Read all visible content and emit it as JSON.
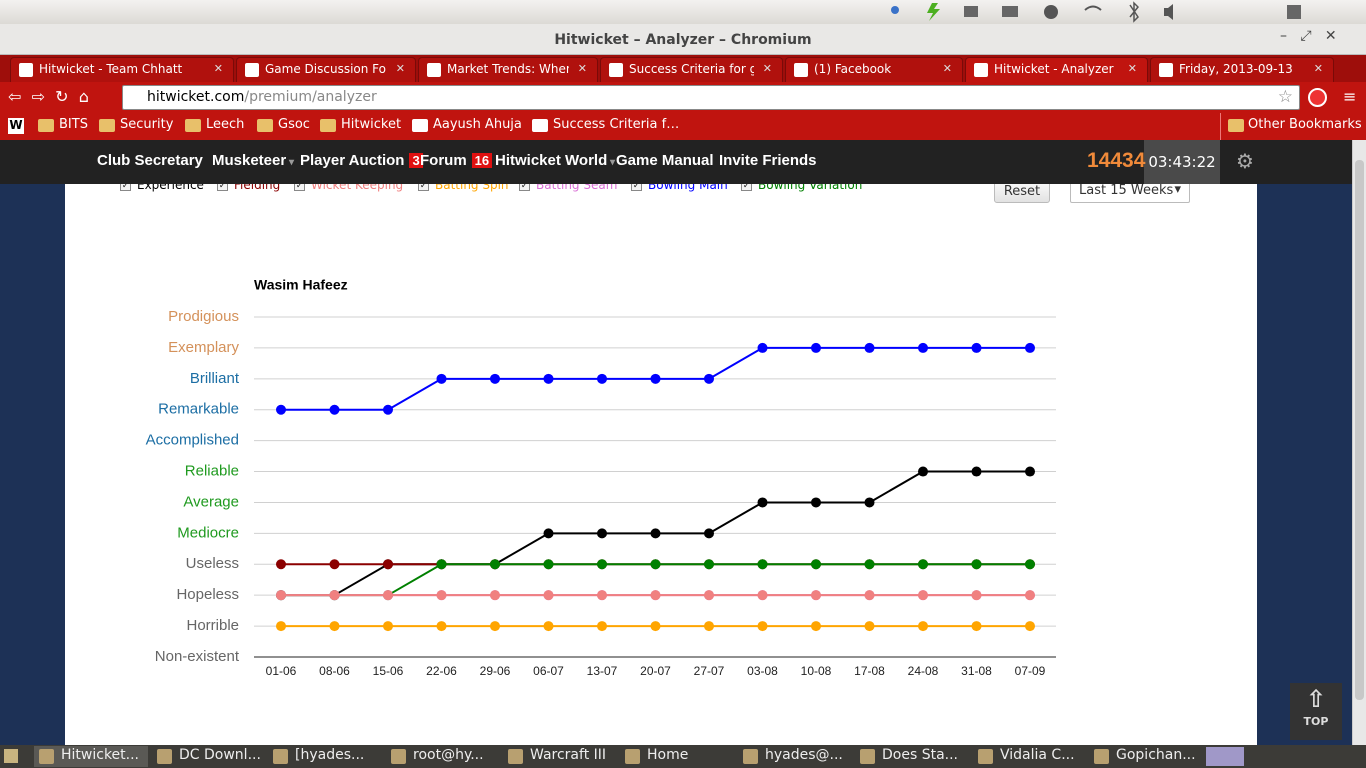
{
  "window_title": "Hitwicket – Analyzer – Chromium",
  "tabs": [
    "Hitwicket - Team Chhatt",
    "Game Discussion Forum",
    "Market Trends: When t",
    "Success Criteria for gst",
    "(1) Facebook",
    "Hitwicket - Analyzer",
    "Friday, 2013-09-13"
  ],
  "url": {
    "host": "hitwicket.com",
    "path": "/premium/analyzer"
  },
  "bookmarks": [
    "BITS",
    "Security",
    "Leech",
    "Gsoc",
    "Hitwicket",
    "Aayush Ahuja",
    "Success Criteria f…"
  ],
  "other_bookmarks": "Other Bookmarks",
  "nav": {
    "items": [
      {
        "label": "Club Secretary"
      },
      {
        "label": "Musketeer"
      },
      {
        "label": "Player Auction",
        "badge": 3
      },
      {
        "label": "Forum",
        "badge": 16
      },
      {
        "label": "Hitwicket World"
      },
      {
        "label": "Game Manual"
      },
      {
        "label": "Invite Friends"
      }
    ],
    "score": 14434,
    "clock": "03:43:22"
  },
  "controls": {
    "reset": "Reset",
    "range": "Last 15 Weeks"
  },
  "top_button": "TOP",
  "taskbar": [
    "Hitwicket...",
    "DC Downl...",
    "[hyades...",
    "root@hy...",
    "Warcraft III",
    "Home",
    "hyades@...",
    "Does Sta...",
    "Vidalia C...",
    "Gopichan..."
  ],
  "chart_data": {
    "type": "line",
    "title": "Wasim Hafeez",
    "categories": [
      "01-06",
      "08-06",
      "15-06",
      "22-06",
      "29-06",
      "06-07",
      "13-07",
      "20-07",
      "27-07",
      "03-08",
      "10-08",
      "17-08",
      "24-08",
      "31-08",
      "07-09"
    ],
    "ylim": [
      0,
      11
    ],
    "yticks": [
      {
        "value": 0,
        "label": "Non-existent",
        "color": "#666666"
      },
      {
        "value": 1,
        "label": "Horrible",
        "color": "#666666"
      },
      {
        "value": 2,
        "label": "Hopeless",
        "color": "#666666"
      },
      {
        "value": 3,
        "label": "Useless",
        "color": "#666666"
      },
      {
        "value": 4,
        "label": "Mediocre",
        "color": "#1f9a1f"
      },
      {
        "value": 5,
        "label": "Average",
        "color": "#1f9a1f"
      },
      {
        "value": 6,
        "label": "Reliable",
        "color": "#1f9a1f"
      },
      {
        "value": 7,
        "label": "Accomplished",
        "color": "#1c6ea4"
      },
      {
        "value": 8,
        "label": "Remarkable",
        "color": "#1c6ea4"
      },
      {
        "value": 9,
        "label": "Brilliant",
        "color": "#1c6ea4"
      },
      {
        "value": 10,
        "label": "Exemplary",
        "color": "#d4915a"
      },
      {
        "value": 11,
        "label": "Prodigious",
        "color": "#d4915a"
      }
    ],
    "grid": true,
    "series": [
      {
        "name": "Experience",
        "color": "#000000",
        "values": [
          2,
          2,
          3,
          3,
          3,
          4,
          4,
          4,
          4,
          5,
          5,
          5,
          6,
          6,
          6
        ]
      },
      {
        "name": "Fielding",
        "color": "#8b0000",
        "values": [
          3,
          3,
          3,
          3,
          3,
          3,
          3,
          3,
          3,
          3,
          3,
          3,
          3,
          3,
          3
        ]
      },
      {
        "name": "Wicket Keeping",
        "color": "#f08080",
        "values": [
          2,
          2,
          2,
          2,
          2,
          2,
          2,
          2,
          2,
          2,
          2,
          2,
          2,
          2,
          2
        ]
      },
      {
        "name": "Batting Spin",
        "color": "#ffa500",
        "values": [
          1,
          1,
          1,
          1,
          1,
          1,
          1,
          1,
          1,
          1,
          1,
          1,
          1,
          1,
          1
        ]
      },
      {
        "name": "Batting Seam",
        "color": "#da70d6",
        "values": [
          2,
          2,
          2,
          2,
          2,
          2,
          2,
          2,
          2,
          2,
          2,
          2,
          2,
          2,
          2
        ]
      },
      {
        "name": "Bowling Main",
        "color": "#0000ff",
        "values": [
          8,
          8,
          8,
          9,
          9,
          9,
          9,
          9,
          9,
          10,
          10,
          10,
          10,
          10,
          10
        ]
      },
      {
        "name": "Bowling Variation",
        "color": "#008000",
        "values": [
          2,
          2,
          2,
          3,
          3,
          3,
          3,
          3,
          3,
          3,
          3,
          3,
          3,
          3,
          3
        ]
      }
    ]
  }
}
